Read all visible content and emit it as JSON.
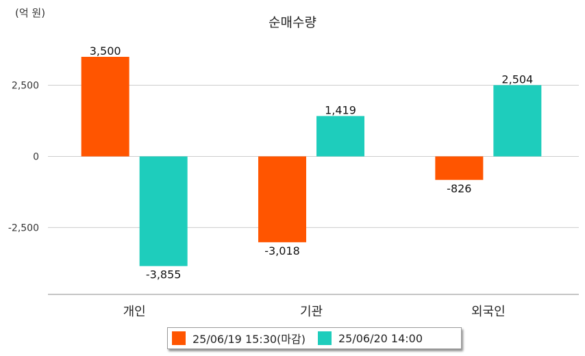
{
  "chart_data": {
    "type": "bar",
    "title": "순매수량",
    "unit_label": "(억 원)",
    "categories": [
      "개인",
      "기관",
      "외국인"
    ],
    "series": [
      {
        "name": "25/06/19 15:30(마감)",
        "color": "#ff5500",
        "values": [
          3500,
          -3018,
          -826
        ],
        "labels": [
          "3,500",
          "-3,018",
          "-826"
        ]
      },
      {
        "name": "25/06/20 14:00",
        "color": "#1ecdbc",
        "values": [
          -3855,
          1419,
          2504
        ],
        "labels": [
          "-3,855",
          "1,419",
          "2,504"
        ]
      }
    ],
    "yticks": [
      2500,
      0,
      -2500
    ],
    "ytick_labels": [
      "2,500",
      "0",
      "-2,500"
    ],
    "ylim": [
      -4850,
      3500
    ],
    "grid": true,
    "legend_position": "bottom"
  }
}
